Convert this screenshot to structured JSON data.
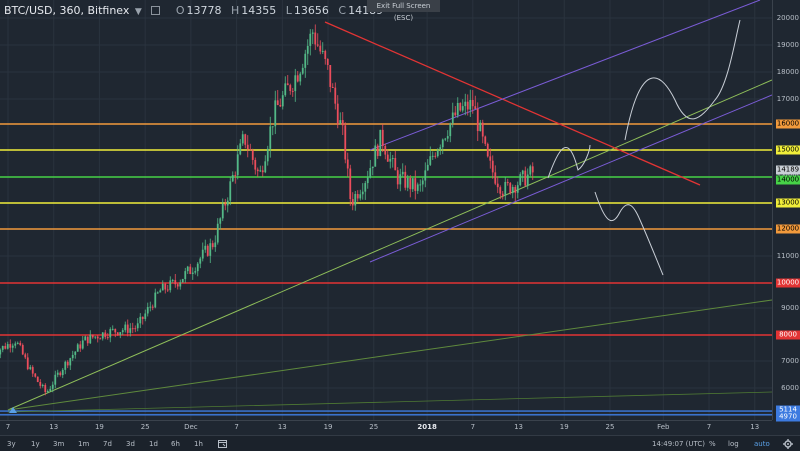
{
  "legend": {
    "symbol": "BTC/USD, 360, Bitfinex",
    "dropdown_icon": "▼",
    "o_label": "O",
    "o_value": "13778",
    "h_label": "H",
    "h_value": "14355",
    "l_label": "L",
    "l_value": "13656",
    "c_label": "C",
    "c_value": "14189"
  },
  "exit_fullscreen": "Exit Full Screen (ESC)",
  "price_ticks": [
    "20000",
    "19000",
    "18000",
    "17000",
    "16000",
    "15000",
    "14000",
    "13000",
    "12000",
    "11000",
    "10000",
    "9000",
    "8000",
    "7000",
    "6000",
    "5000"
  ],
  "price_labels": [
    {
      "text": "16000",
      "color": "#f29a3c"
    },
    {
      "text": "15000",
      "color": "#f0ee3a"
    },
    {
      "text": "14189",
      "color": "#c9cfd6"
    },
    {
      "text": "14000",
      "color": "#46d247"
    },
    {
      "text": "13000",
      "color": "#f0ee3a"
    },
    {
      "text": "12000",
      "color": "#f29a3c"
    },
    {
      "text": "10000",
      "color": "#e23434"
    },
    {
      "text": "8000",
      "color": "#e23434"
    },
    {
      "text": "5114",
      "color": "#3d7be0"
    },
    {
      "text": "4970",
      "color": "#3d7be0"
    }
  ],
  "time_ticks": [
    {
      "text": "7",
      "bold": false
    },
    {
      "text": "13",
      "bold": false
    },
    {
      "text": "19",
      "bold": false
    },
    {
      "text": "25",
      "bold": false
    },
    {
      "text": "Dec",
      "bold": false
    },
    {
      "text": "7",
      "bold": false
    },
    {
      "text": "13",
      "bold": false
    },
    {
      "text": "19",
      "bold": false
    },
    {
      "text": "25",
      "bold": false
    },
    {
      "text": "2018",
      "bold": true
    },
    {
      "text": "7",
      "bold": false
    },
    {
      "text": "13",
      "bold": false
    },
    {
      "text": "19",
      "bold": false
    },
    {
      "text": "25",
      "bold": false
    },
    {
      "text": "Feb",
      "bold": false
    },
    {
      "text": "7",
      "bold": false
    },
    {
      "text": "13",
      "bold": false
    }
  ],
  "ranges": [
    "3y",
    "1y",
    "3m",
    "1m",
    "7d",
    "3d",
    "1d",
    "6h",
    "1h"
  ],
  "goto_icon": "calendar-goto-icon",
  "clock": "14:49:07 (UTC)",
  "options": {
    "percent": "%",
    "log": "log",
    "auto": "auto"
  },
  "settings_icon": "gear-icon",
  "colors": {
    "background": "#1f2731",
    "up_candle": "#53b987",
    "down_candle": "#eb4d5c",
    "orange": "#f29a3c",
    "yellow": "#f0ee3a",
    "green": "#46d247",
    "red": "#e23434",
    "blue": "#3d7be0",
    "purple": "#7a5cd6"
  },
  "chart_data": {
    "type": "candlestick",
    "title": "BTC/USD, 360, Bitfinex",
    "ylim": [
      4800,
      20150
    ],
    "x": [
      "Nov 7",
      "Nov 13",
      "Nov 19",
      "Nov 25",
      "Dec 1",
      "Dec 7",
      "Dec 13",
      "Dec 19",
      "Dec 25",
      "2018",
      "Jan 7",
      "Jan 13",
      "Jan 19",
      "Jan 25",
      "Feb",
      "Feb 7",
      "Feb 13"
    ],
    "close_path": [
      {
        "x": "Nov 5",
        "y": 7300
      },
      {
        "x": "Nov 8",
        "y": 7800
      },
      {
        "x": "Nov 10",
        "y": 6600
      },
      {
        "x": "Nov 12",
        "y": 5800
      },
      {
        "x": "Nov 14",
        "y": 6700
      },
      {
        "x": "Nov 17",
        "y": 7800
      },
      {
        "x": "Nov 20",
        "y": 8100
      },
      {
        "x": "Nov 24",
        "y": 8300
      },
      {
        "x": "Nov 27",
        "y": 9700
      },
      {
        "x": "Nov 29",
        "y": 10000
      },
      {
        "x": "Dec 1",
        "y": 10500
      },
      {
        "x": "Dec 4",
        "y": 11500
      },
      {
        "x": "Dec 6",
        "y": 13500
      },
      {
        "x": "Dec 8",
        "y": 15500
      },
      {
        "x": "Dec 10",
        "y": 14000
      },
      {
        "x": "Dec 12",
        "y": 16500
      },
      {
        "x": "Dec 15",
        "y": 18000
      },
      {
        "x": "Dec 17",
        "y": 19500
      },
      {
        "x": "Dec 19",
        "y": 18000
      },
      {
        "x": "Dec 21",
        "y": 15500
      },
      {
        "x": "Dec 22",
        "y": 13000
      },
      {
        "x": "Dec 24",
        "y": 14000
      },
      {
        "x": "Dec 26",
        "y": 15500
      },
      {
        "x": "Dec 28",
        "y": 14000
      },
      {
        "x": "Dec 31",
        "y": 13500
      },
      {
        "x": "Jan 2",
        "y": 15000
      },
      {
        "x": "Jan 5",
        "y": 16500
      },
      {
        "x": "Jan 7",
        "y": 16800
      },
      {
        "x": "Jan 9",
        "y": 14500
      },
      {
        "x": "Jan 11",
        "y": 13500
      },
      {
        "x": "Jan 13",
        "y": 13800
      },
      {
        "x": "Jan 15",
        "y": 14189
      }
    ],
    "horizontal_levels": [
      {
        "value": 16000,
        "color": "orange"
      },
      {
        "value": 15000,
        "color": "yellow"
      },
      {
        "value": 14000,
        "color": "green"
      },
      {
        "value": 13000,
        "color": "yellow"
      },
      {
        "value": 12000,
        "color": "orange"
      },
      {
        "value": 10000,
        "color": "red"
      },
      {
        "value": 8000,
        "color": "red"
      },
      {
        "value": 5114,
        "color": "blue"
      },
      {
        "value": 4970,
        "color": "blue"
      }
    ]
  }
}
